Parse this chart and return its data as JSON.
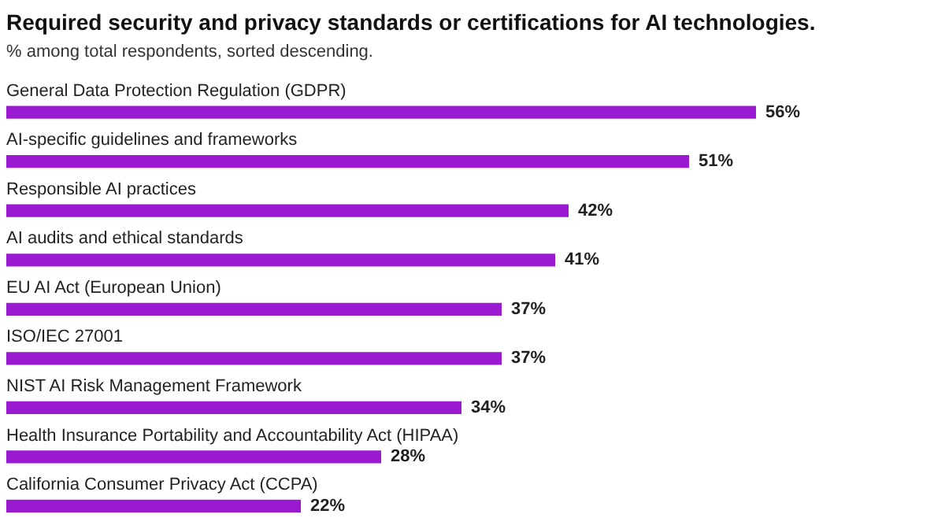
{
  "chart_data": {
    "type": "bar",
    "orientation": "horizontal",
    "title": "Required security and privacy standards or certifications for AI technologies.",
    "subtitle": "% among total respondents, sorted descending.",
    "categories": [
      "General Data Protection Regulation (GDPR)",
      "AI-specific guidelines and frameworks",
      "Responsible AI practices",
      "AI audits and ethical standards",
      "EU AI Act (European Union)",
      "ISO/IEC 27001",
      "NIST AI Risk Management Framework",
      "Health Insurance Portability and Accountability Act (HIPAA)",
      "California Consumer Privacy Act (CCPA)"
    ],
    "values": [
      56,
      51,
      42,
      41,
      37,
      37,
      34,
      28,
      22
    ],
    "value_labels": [
      "56%",
      "51%",
      "42%",
      "41%",
      "37%",
      "37%",
      "34%",
      "28%",
      "22%"
    ],
    "color": "#9a1ad2"
  }
}
